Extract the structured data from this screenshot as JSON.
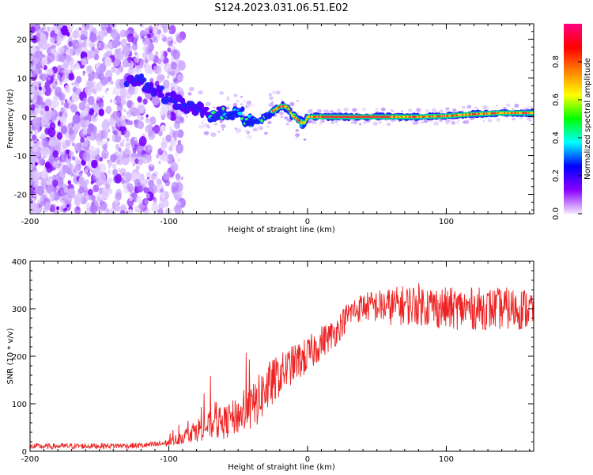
{
  "title": "S124.2023.031.06.51.E02",
  "chart_data": [
    {
      "type": "heatmap",
      "xlabel": "Height of straight line (km)",
      "ylabel": "Frequency (Hz)",
      "xlim": [
        -200,
        163
      ],
      "ylim": [
        -25,
        24
      ],
      "xticks": [
        -200,
        -100,
        0,
        100
      ],
      "xtick_labels": [
        "-200",
        "-100",
        "0",
        "100"
      ],
      "yticks": [
        -20,
        -10,
        0,
        10,
        20
      ],
      "ytick_labels": [
        "-20",
        "-10",
        "0",
        "10",
        "20"
      ],
      "colorbar": {
        "label": "Normalized spectral amplitude",
        "range": [
          0,
          1
        ],
        "ticks": [
          0.0,
          0.2,
          0.4,
          0.6,
          0.8
        ],
        "tick_labels": [
          "0.0",
          "0.2",
          "0.4",
          "0.6",
          "0.8"
        ],
        "colors": [
          "#f6e8ff",
          "#8a00ff",
          "#0000ff",
          "#00ffff",
          "#00ff00",
          "#ffff00",
          "#ff8000",
          "#ff0000",
          "#ff0080"
        ]
      },
      "ridge": {
        "x": [
          -125,
          -110,
          -100,
          -90,
          -80,
          -70,
          -60,
          -50,
          -40,
          -35,
          -30,
          -25,
          -20,
          -17,
          -14,
          -11,
          -8,
          -5,
          -2,
          0,
          20,
          50,
          80,
          100,
          120,
          140,
          163
        ],
        "y": [
          10,
          7,
          5,
          3,
          2,
          0,
          1.5,
          1,
          -1,
          -1.5,
          0,
          1.5,
          2.6,
          2.8,
          2.2,
          0.2,
          -0.5,
          -1.5,
          -1.5,
          0,
          0,
          0,
          0,
          0.2,
          0.7,
          1,
          1
        ]
      }
    },
    {
      "type": "line",
      "xlabel": "Height of straight line (km)",
      "ylabel": "SNR (10 * v/v)",
      "xlim": [
        -200,
        163
      ],
      "ylim": [
        0,
        400
      ],
      "xticks": [
        -200,
        -100,
        0,
        100
      ],
      "xtick_labels": [
        "-200",
        "-100",
        "0",
        "100"
      ],
      "yticks": [
        0,
        100,
        200,
        300,
        400
      ],
      "ytick_labels": [
        "0",
        "100",
        "200",
        "300",
        "400"
      ],
      "series": [
        {
          "color": "#ee2222",
          "trend_x": [
            -200,
            -120,
            -110,
            -100,
            -90,
            -80,
            -70,
            -60,
            -50,
            -40,
            -30,
            -20,
            -10,
            0,
            10,
            20,
            30,
            40,
            60,
            80,
            100,
            120,
            140,
            163
          ],
          "trend_y": [
            10,
            12,
            14,
            18,
            30,
            45,
            55,
            60,
            75,
            90,
            130,
            160,
            185,
            200,
            230,
            250,
            290,
            305,
            305,
            310,
            300,
            300,
            300,
            300
          ],
          "spread_y": [
            6,
            6,
            7,
            8,
            15,
            25,
            30,
            35,
            40,
            50,
            55,
            45,
            40,
            40,
            35,
            30,
            30,
            30,
            40,
            45,
            45,
            45,
            45,
            45
          ],
          "peak_max": 400
        }
      ]
    }
  ]
}
